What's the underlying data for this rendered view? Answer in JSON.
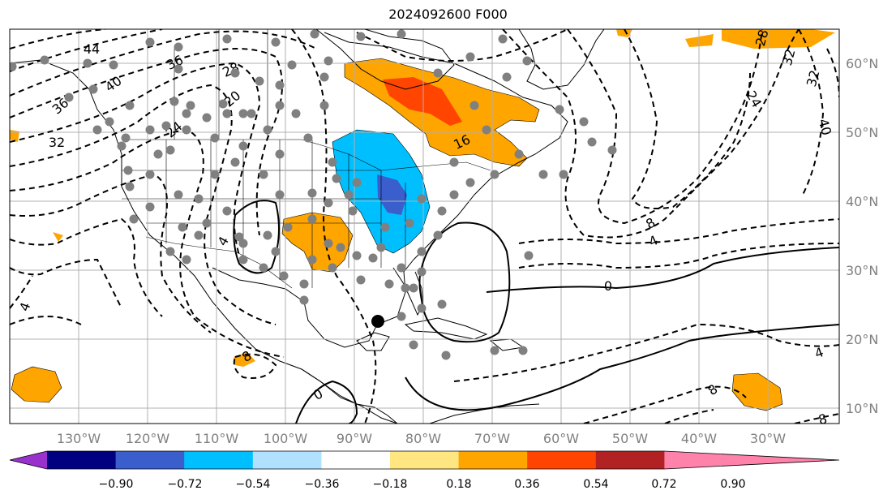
{
  "title": "2024092600 F000",
  "map": {
    "lon_labels": [
      "130°W",
      "120°W",
      "110°W",
      "100°W",
      "90°W",
      "80°W",
      "70°W",
      "60°W",
      "50°W",
      "40°W",
      "30°W"
    ],
    "lat_labels": [
      "60°N",
      "50°N",
      "40°N",
      "30°N",
      "20°N",
      "10°N"
    ],
    "contour_labels": [
      "44",
      "40",
      "36",
      "32",
      "28",
      "24",
      "20",
      "16",
      "32",
      "28",
      "24",
      "32",
      "40",
      "36",
      "4",
      "8",
      "4",
      "0",
      "0",
      "4",
      "8",
      "8",
      "4",
      "8"
    ],
    "colors": {
      "land_line": "#000000",
      "grid": "#b0b0b0",
      "orange": "#ffa500",
      "red_orange": "#ff4500",
      "sky_blue": "#00bfff",
      "royal_blue": "#3a5fcd",
      "station_dot": "#808080",
      "marker": "#000000"
    }
  },
  "colorbar": {
    "ticks": [
      "−0.90",
      "−0.72",
      "−0.54",
      "−0.36",
      "−0.18",
      "0.18",
      "0.36",
      "0.54",
      "0.72",
      "0.90"
    ],
    "bins": [
      {
        "color": "#9932cc"
      },
      {
        "color": "#000080"
      },
      {
        "color": "#3a5fcd"
      },
      {
        "color": "#00bfff"
      },
      {
        "color": "#b0e2ff"
      },
      {
        "color": "#ffffff"
      },
      {
        "color": "#ffe680"
      },
      {
        "color": "#ffa500"
      },
      {
        "color": "#ff4500"
      },
      {
        "color": "#b22222"
      },
      {
        "color": "#ff82ab"
      }
    ]
  }
}
